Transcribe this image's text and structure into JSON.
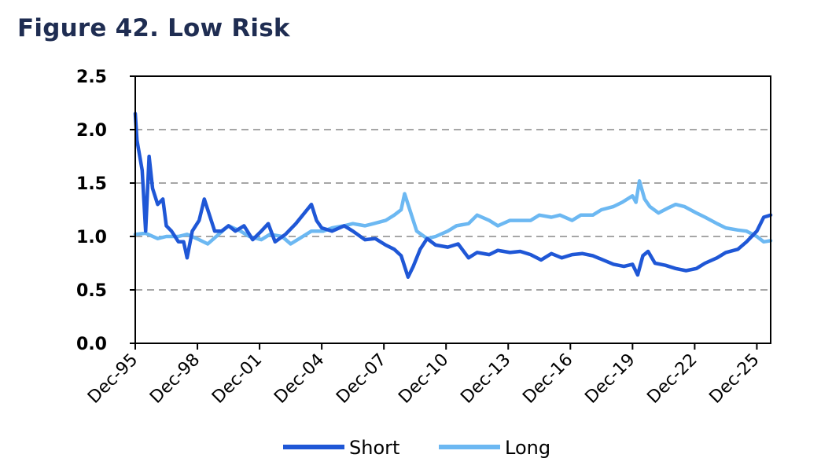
{
  "figure": {
    "title": "Figure 42. Low Risk"
  },
  "chart_data": {
    "type": "line",
    "title": "Figure 42. Low Risk",
    "xlabel": "",
    "ylabel": "",
    "ylim": [
      0,
      2.5
    ],
    "yticks": [
      "0.0",
      "0.5",
      "1.0",
      "1.5",
      "2.0",
      "2.5"
    ],
    "ytick_values": [
      0,
      0.5,
      1.0,
      1.5,
      2.0,
      2.5
    ],
    "xlim": [
      "1995-12",
      "2026-08"
    ],
    "xticks": [
      "Dec-95",
      "Dec-98",
      "Dec-01",
      "Dec-04",
      "Dec-07",
      "Dec-10",
      "Dec-13",
      "Dec-16",
      "Dec-19",
      "Dec-22",
      "Dec-25"
    ],
    "xtick_dates": [
      "1995-12",
      "1998-12",
      "2001-12",
      "2004-12",
      "2007-12",
      "2010-12",
      "2013-12",
      "2016-12",
      "2019-12",
      "2022-12",
      "2025-12"
    ],
    "grid": "horizontal dashed",
    "legend": "bottom",
    "series": [
      {
        "name": "Short",
        "color": "#1f57d6",
        "points": [
          [
            "1995-12",
            2.15
          ],
          [
            "1996-01",
            1.9
          ],
          [
            "1996-04",
            1.62
          ],
          [
            "1996-06",
            1.05
          ],
          [
            "1996-08",
            1.75
          ],
          [
            "1996-10",
            1.45
          ],
          [
            "1997-01",
            1.3
          ],
          [
            "1997-04",
            1.35
          ],
          [
            "1997-06",
            1.1
          ],
          [
            "1997-09",
            1.05
          ],
          [
            "1998-01",
            0.95
          ],
          [
            "1998-04",
            0.95
          ],
          [
            "1998-06",
            0.8
          ],
          [
            "1998-09",
            1.05
          ],
          [
            "1999-01",
            1.15
          ],
          [
            "1999-04",
            1.35
          ],
          [
            "1999-07",
            1.2
          ],
          [
            "1999-10",
            1.05
          ],
          [
            "2000-02",
            1.05
          ],
          [
            "2000-06",
            1.1
          ],
          [
            "2000-10",
            1.05
          ],
          [
            "2001-03",
            1.1
          ],
          [
            "2001-08",
            0.97
          ],
          [
            "2002-01",
            1.05
          ],
          [
            "2002-05",
            1.12
          ],
          [
            "2002-09",
            0.95
          ],
          [
            "2003-03",
            1.02
          ],
          [
            "2003-09",
            1.12
          ],
          [
            "2004-01",
            1.2
          ],
          [
            "2004-06",
            1.3
          ],
          [
            "2004-09",
            1.15
          ],
          [
            "2004-12",
            1.08
          ],
          [
            "2005-06",
            1.05
          ],
          [
            "2006-01",
            1.1
          ],
          [
            "2006-06",
            1.05
          ],
          [
            "2007-01",
            0.97
          ],
          [
            "2007-07",
            0.98
          ],
          [
            "2008-01",
            0.92
          ],
          [
            "2008-06",
            0.88
          ],
          [
            "2008-10",
            0.82
          ],
          [
            "2009-02",
            0.62
          ],
          [
            "2009-05",
            0.72
          ],
          [
            "2009-09",
            0.88
          ],
          [
            "2010-01",
            0.98
          ],
          [
            "2010-06",
            0.92
          ],
          [
            "2011-01",
            0.9
          ],
          [
            "2011-07",
            0.93
          ],
          [
            "2012-01",
            0.8
          ],
          [
            "2012-06",
            0.85
          ],
          [
            "2013-01",
            0.83
          ],
          [
            "2013-06",
            0.87
          ],
          [
            "2014-01",
            0.85
          ],
          [
            "2014-07",
            0.86
          ],
          [
            "2015-01",
            0.83
          ],
          [
            "2015-07",
            0.78
          ],
          [
            "2016-01",
            0.84
          ],
          [
            "2016-07",
            0.8
          ],
          [
            "2017-01",
            0.83
          ],
          [
            "2017-07",
            0.84
          ],
          [
            "2018-01",
            0.82
          ],
          [
            "2018-07",
            0.78
          ],
          [
            "2019-01",
            0.74
          ],
          [
            "2019-07",
            0.72
          ],
          [
            "2019-12",
            0.74
          ],
          [
            "2020-03",
            0.64
          ],
          [
            "2020-06",
            0.82
          ],
          [
            "2020-09",
            0.86
          ],
          [
            "2021-01",
            0.75
          ],
          [
            "2021-07",
            0.73
          ],
          [
            "2022-01",
            0.7
          ],
          [
            "2022-07",
            0.68
          ],
          [
            "2023-01",
            0.7
          ],
          [
            "2023-06",
            0.75
          ],
          [
            "2024-01",
            0.8
          ],
          [
            "2024-06",
            0.85
          ],
          [
            "2025-01",
            0.88
          ],
          [
            "2025-06",
            0.95
          ],
          [
            "2025-12",
            1.05
          ],
          [
            "2026-04",
            1.18
          ],
          [
            "2026-08",
            1.2
          ]
        ]
      },
      {
        "name": "Long",
        "color": "#6cb8f2",
        "points": [
          [
            "1995-12",
            1.02
          ],
          [
            "1996-06",
            1.03
          ],
          [
            "1997-01",
            0.98
          ],
          [
            "1997-06",
            1.0
          ],
          [
            "1998-01",
            1.0
          ],
          [
            "1998-06",
            1.02
          ],
          [
            "1999-01",
            0.97
          ],
          [
            "1999-06",
            0.93
          ],
          [
            "2000-01",
            1.03
          ],
          [
            "2000-06",
            1.1
          ],
          [
            "2001-01",
            1.05
          ],
          [
            "2001-06",
            1.0
          ],
          [
            "2002-01",
            0.97
          ],
          [
            "2002-06",
            1.02
          ],
          [
            "2003-01",
            1.0
          ],
          [
            "2003-06",
            0.93
          ],
          [
            "2004-01",
            1.0
          ],
          [
            "2004-06",
            1.05
          ],
          [
            "2005-01",
            1.05
          ],
          [
            "2005-06",
            1.08
          ],
          [
            "2006-01",
            1.1
          ],
          [
            "2006-06",
            1.12
          ],
          [
            "2007-01",
            1.1
          ],
          [
            "2007-06",
            1.12
          ],
          [
            "2008-01",
            1.15
          ],
          [
            "2008-06",
            1.2
          ],
          [
            "2008-10",
            1.25
          ],
          [
            "2008-12",
            1.4
          ],
          [
            "2009-03",
            1.25
          ],
          [
            "2009-07",
            1.05
          ],
          [
            "2010-01",
            0.98
          ],
          [
            "2010-06",
            1.0
          ],
          [
            "2011-01",
            1.05
          ],
          [
            "2011-06",
            1.1
          ],
          [
            "2012-01",
            1.12
          ],
          [
            "2012-06",
            1.2
          ],
          [
            "2013-01",
            1.15
          ],
          [
            "2013-06",
            1.1
          ],
          [
            "2014-01",
            1.15
          ],
          [
            "2014-06",
            1.15
          ],
          [
            "2015-01",
            1.15
          ],
          [
            "2015-06",
            1.2
          ],
          [
            "2016-01",
            1.18
          ],
          [
            "2016-06",
            1.2
          ],
          [
            "2017-01",
            1.15
          ],
          [
            "2017-06",
            1.2
          ],
          [
            "2018-01",
            1.2
          ],
          [
            "2018-06",
            1.25
          ],
          [
            "2019-01",
            1.28
          ],
          [
            "2019-06",
            1.32
          ],
          [
            "2019-12",
            1.38
          ],
          [
            "2020-02",
            1.32
          ],
          [
            "2020-04",
            1.52
          ],
          [
            "2020-07",
            1.35
          ],
          [
            "2020-10",
            1.28
          ],
          [
            "2021-03",
            1.22
          ],
          [
            "2021-09",
            1.27
          ],
          [
            "2022-01",
            1.3
          ],
          [
            "2022-06",
            1.28
          ],
          [
            "2023-01",
            1.22
          ],
          [
            "2023-06",
            1.18
          ],
          [
            "2024-01",
            1.12
          ],
          [
            "2024-06",
            1.08
          ],
          [
            "2025-01",
            1.06
          ],
          [
            "2025-06",
            1.05
          ],
          [
            "2025-12",
            1.0
          ],
          [
            "2026-04",
            0.95
          ],
          [
            "2026-08",
            0.96
          ]
        ]
      }
    ]
  }
}
